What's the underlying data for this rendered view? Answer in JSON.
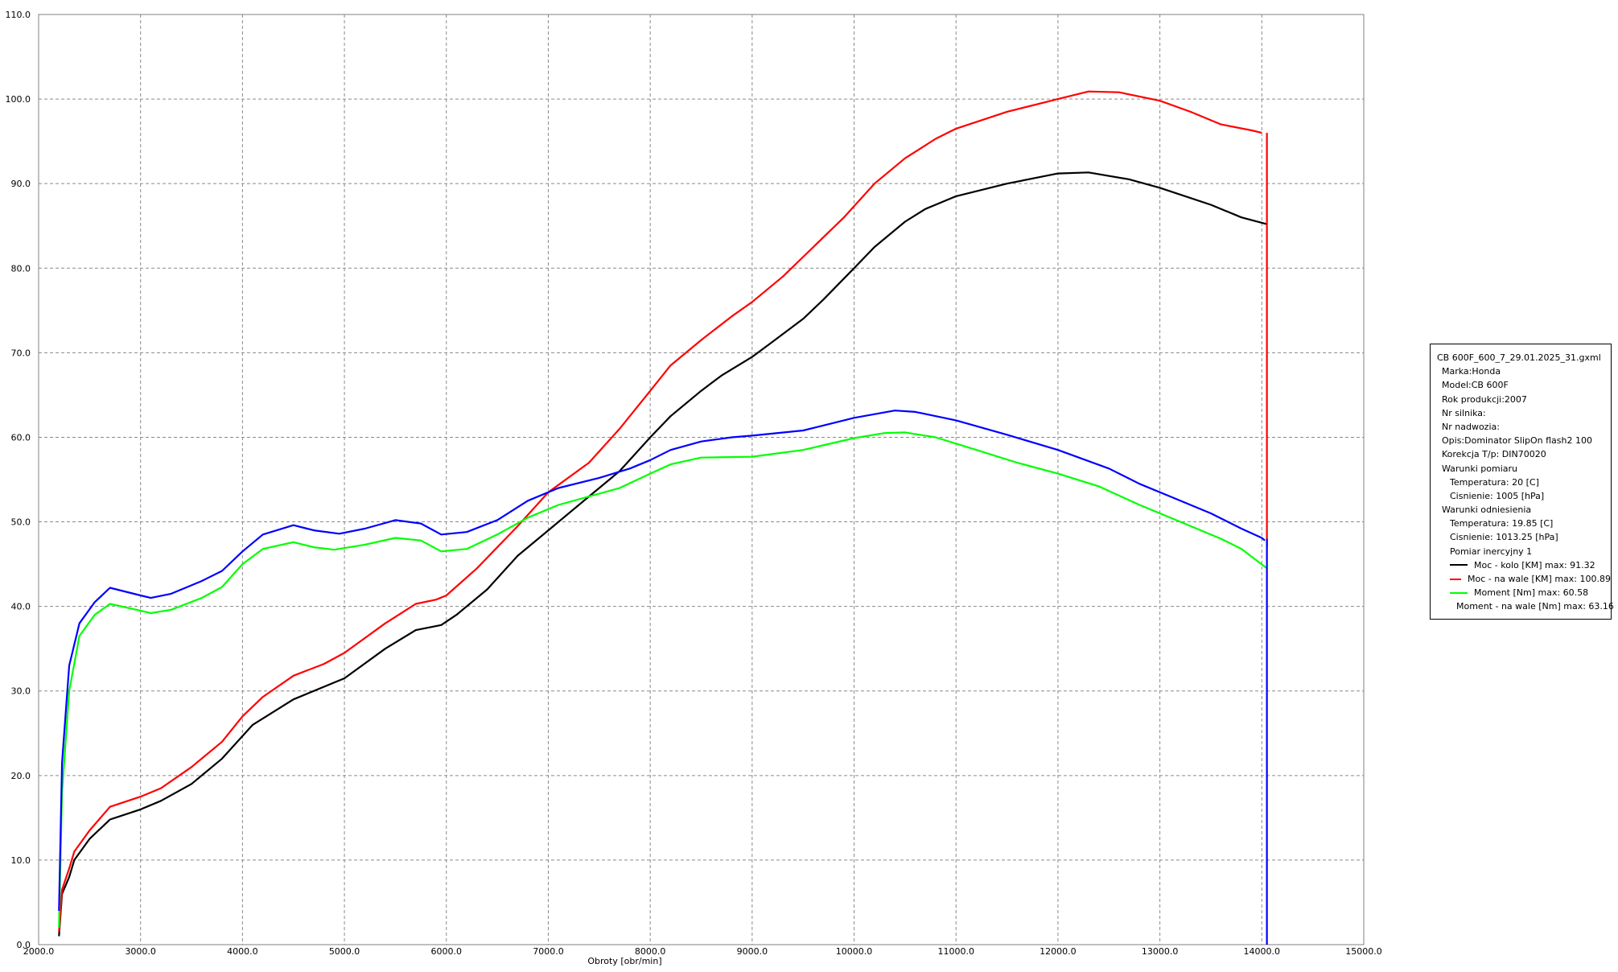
{
  "chart_data": {
    "type": "line",
    "title": "",
    "xlabel": "Obroty [obr/min]",
    "ylabel": "",
    "xlim": [
      2000,
      15000
    ],
    "ylim": [
      0,
      110
    ],
    "grid": true,
    "legend_position": "right",
    "x_tick_labels": [
      "2000.0",
      "3000.0",
      "4000.0",
      "5000.0",
      "6000.0",
      "7000.0",
      "8000.0",
      "9000.0",
      "10000.0",
      "11000.0",
      "12000.0",
      "13000.0",
      "14000.0",
      "15000.0"
    ],
    "y_tick_labels": [
      "0.0",
      "10.0",
      "20.0",
      "30.0",
      "40.0",
      "50.0",
      "60.0",
      "70.0",
      "80.0",
      "90.0",
      "100.0",
      "110.0"
    ],
    "series": [
      {
        "name": "Moc - kolo [KM] max: 91.32",
        "color": "#000000",
        "points": [
          [
            2200,
            1
          ],
          [
            2230,
            6
          ],
          [
            2300,
            8
          ],
          [
            2350,
            10
          ],
          [
            2500,
            12.5
          ],
          [
            2700,
            14.8
          ],
          [
            3000,
            16
          ],
          [
            3200,
            17
          ],
          [
            3500,
            19
          ],
          [
            3800,
            22
          ],
          [
            4100,
            26
          ],
          [
            4500,
            29
          ],
          [
            5000,
            31.5
          ],
          [
            5400,
            35
          ],
          [
            5700,
            37.2
          ],
          [
            5950,
            37.8
          ],
          [
            6100,
            39
          ],
          [
            6400,
            42
          ],
          [
            6700,
            46
          ],
          [
            7000,
            49
          ],
          [
            7400,
            53
          ],
          [
            7700,
            56
          ],
          [
            8000,
            60
          ],
          [
            8200,
            62.5
          ],
          [
            8500,
            65.5
          ],
          [
            8700,
            67.3
          ],
          [
            9000,
            69.5
          ],
          [
            9200,
            71.3
          ],
          [
            9500,
            74
          ],
          [
            9700,
            76.3
          ],
          [
            10000,
            80
          ],
          [
            10200,
            82.5
          ],
          [
            10500,
            85.5
          ],
          [
            10700,
            87
          ],
          [
            11000,
            88.5
          ],
          [
            11500,
            90
          ],
          [
            12000,
            91.2
          ],
          [
            12300,
            91.32
          ],
          [
            12700,
            90.5
          ],
          [
            13000,
            89.5
          ],
          [
            13500,
            87.5
          ],
          [
            13800,
            86
          ],
          [
            14050,
            85.2
          ]
        ]
      },
      {
        "name": "Moc - na wale [KM] max: 100.89",
        "color": "#ff0000",
        "points": [
          [
            2200,
            1.5
          ],
          [
            2230,
            6.5
          ],
          [
            2300,
            9
          ],
          [
            2350,
            11
          ],
          [
            2500,
            13.5
          ],
          [
            2700,
            16.3
          ],
          [
            3000,
            17.5
          ],
          [
            3200,
            18.5
          ],
          [
            3500,
            21
          ],
          [
            3800,
            24
          ],
          [
            4000,
            27
          ],
          [
            4200,
            29.3
          ],
          [
            4500,
            31.8
          ],
          [
            4800,
            33.2
          ],
          [
            5000,
            34.5
          ],
          [
            5400,
            38
          ],
          [
            5700,
            40.3
          ],
          [
            5900,
            40.8
          ],
          [
            6000,
            41.3
          ],
          [
            6300,
            44.5
          ],
          [
            6700,
            49.5
          ],
          [
            7000,
            53.5
          ],
          [
            7400,
            57
          ],
          [
            7700,
            61
          ],
          [
            8000,
            65.5
          ],
          [
            8200,
            68.5
          ],
          [
            8500,
            71.5
          ],
          [
            8800,
            74.3
          ],
          [
            9000,
            76
          ],
          [
            9300,
            79
          ],
          [
            9600,
            82.5
          ],
          [
            9900,
            86
          ],
          [
            10200,
            90
          ],
          [
            10500,
            93
          ],
          [
            10800,
            95.3
          ],
          [
            11000,
            96.5
          ],
          [
            11500,
            98.5
          ],
          [
            12000,
            100
          ],
          [
            12300,
            100.89
          ],
          [
            12600,
            100.8
          ],
          [
            13000,
            99.8
          ],
          [
            13300,
            98.5
          ],
          [
            13600,
            97
          ],
          [
            13900,
            96.3
          ],
          [
            14000,
            96
          ]
        ]
      },
      {
        "name": "Moment [Nm] max: 60.58",
        "color": "#00ff00",
        "points": [
          [
            2200,
            2
          ],
          [
            2230,
            18
          ],
          [
            2300,
            30
          ],
          [
            2400,
            36.5
          ],
          [
            2550,
            39
          ],
          [
            2700,
            40.3
          ],
          [
            3000,
            39.5
          ],
          [
            3100,
            39.2
          ],
          [
            3300,
            39.6
          ],
          [
            3600,
            41
          ],
          [
            3800,
            42.3
          ],
          [
            4000,
            45
          ],
          [
            4200,
            46.8
          ],
          [
            4500,
            47.6
          ],
          [
            4700,
            47
          ],
          [
            4900,
            46.7
          ],
          [
            5200,
            47.3
          ],
          [
            5500,
            48.1
          ],
          [
            5750,
            47.8
          ],
          [
            5950,
            46.5
          ],
          [
            6200,
            46.8
          ],
          [
            6500,
            48.5
          ],
          [
            6800,
            50.5
          ],
          [
            7100,
            52
          ],
          [
            7400,
            53
          ],
          [
            7700,
            54
          ],
          [
            8000,
            55.7
          ],
          [
            8200,
            56.8
          ],
          [
            8500,
            57.6
          ],
          [
            9000,
            57.7
          ],
          [
            9500,
            58.5
          ],
          [
            10000,
            59.9
          ],
          [
            10300,
            60.5
          ],
          [
            10500,
            60.58
          ],
          [
            10800,
            60
          ],
          [
            11200,
            58.5
          ],
          [
            11600,
            57
          ],
          [
            12000,
            55.7
          ],
          [
            12400,
            54.2
          ],
          [
            12800,
            52
          ],
          [
            13200,
            50
          ],
          [
            13600,
            48
          ],
          [
            13800,
            46.8
          ],
          [
            14050,
            44.5
          ]
        ]
      },
      {
        "name": "Moment - na wale [Nm] max: 63.16",
        "color": "#0000ff",
        "points": [
          [
            2200,
            4
          ],
          [
            2230,
            21.5
          ],
          [
            2300,
            33
          ],
          [
            2400,
            38
          ],
          [
            2550,
            40.5
          ],
          [
            2700,
            42.2
          ],
          [
            3000,
            41.3
          ],
          [
            3100,
            41
          ],
          [
            3300,
            41.5
          ],
          [
            3600,
            43
          ],
          [
            3800,
            44.2
          ],
          [
            4000,
            46.5
          ],
          [
            4200,
            48.5
          ],
          [
            4500,
            49.6
          ],
          [
            4700,
            49
          ],
          [
            4950,
            48.6
          ],
          [
            5200,
            49.2
          ],
          [
            5500,
            50.2
          ],
          [
            5750,
            49.8
          ],
          [
            5950,
            48.5
          ],
          [
            6200,
            48.8
          ],
          [
            6500,
            50.2
          ],
          [
            6800,
            52.5
          ],
          [
            7100,
            54
          ],
          [
            7500,
            55.2
          ],
          [
            7800,
            56.3
          ],
          [
            8000,
            57.3
          ],
          [
            8200,
            58.5
          ],
          [
            8500,
            59.5
          ],
          [
            8800,
            60
          ],
          [
            9000,
            60.2
          ],
          [
            9500,
            60.8
          ],
          [
            10000,
            62.3
          ],
          [
            10400,
            63.16
          ],
          [
            10600,
            63
          ],
          [
            11000,
            62
          ],
          [
            11500,
            60.3
          ],
          [
            12000,
            58.5
          ],
          [
            12500,
            56.3
          ],
          [
            12800,
            54.5
          ],
          [
            13100,
            53
          ],
          [
            13500,
            51
          ],
          [
            13800,
            49.2
          ],
          [
            14000,
            48.1
          ],
          [
            14030,
            47.8
          ]
        ]
      }
    ],
    "drop_lines": [
      {
        "color": "#ff0000",
        "x": 14050,
        "from": 96,
        "to": 47
      },
      {
        "color": "#0000ff",
        "x": 14050,
        "from": 48,
        "to": 0
      }
    ]
  },
  "legend": {
    "file": "CB 600F_600_7_29.01.2025_31.gxml",
    "info": [
      "Marka:Honda",
      "Model:CB 600F",
      "Rok produkcji:2007",
      "Nr silnika:",
      "Nr nadwozia:",
      "Opis:Dominator SlipOn flash2 100",
      "Korekcja T/p: DIN70020",
      "Warunki pomiaru"
    ],
    "measure": [
      "Temperatura: 20 [C]",
      "Cisnienie: 1005 [hPa]"
    ],
    "ref_title": "Warunki odniesienia",
    "ref": [
      "Temperatura: 19.85 [C]",
      "Cisnienie: 1013.25 [hPa]"
    ],
    "run_title": "Pomiar inercyjny 1"
  }
}
